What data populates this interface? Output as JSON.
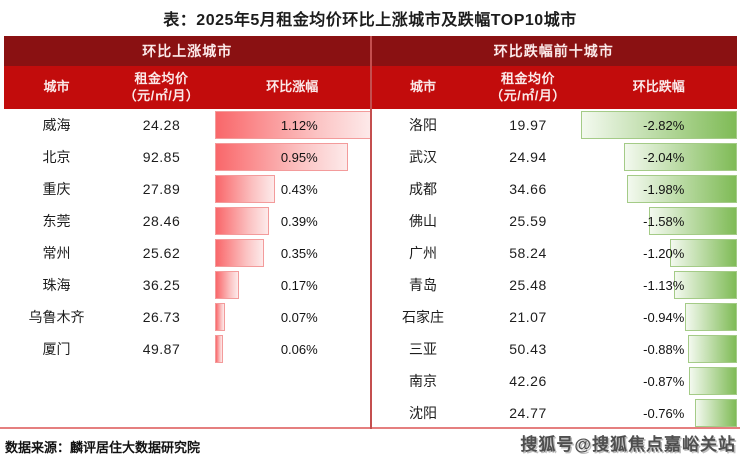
{
  "title": "表：2025年5月租金均价环比上涨城市及跌幅TOP10城市",
  "up_table": {
    "group_header": "环比上涨城市",
    "col_city": "城市",
    "col_price_line1": "租金均价",
    "col_price_line2": "（元/㎡/月）",
    "col_change": "环比涨幅",
    "rows": [
      {
        "city": "威海",
        "price": "24.28",
        "change": "1.12%",
        "value": 1.12
      },
      {
        "city": "北京",
        "price": "92.85",
        "change": "0.95%",
        "value": 0.95
      },
      {
        "city": "重庆",
        "price": "27.89",
        "change": "0.43%",
        "value": 0.43
      },
      {
        "city": "东莞",
        "price": "28.46",
        "change": "0.39%",
        "value": 0.39
      },
      {
        "city": "常州",
        "price": "25.62",
        "change": "0.35%",
        "value": 0.35
      },
      {
        "city": "珠海",
        "price": "36.25",
        "change": "0.17%",
        "value": 0.17
      },
      {
        "city": "乌鲁木齐",
        "price": "26.73",
        "change": "0.07%",
        "value": 0.07
      },
      {
        "city": "厦门",
        "price": "49.87",
        "change": "0.06%",
        "value": 0.06
      }
    ]
  },
  "down_table": {
    "group_header": "环比跌幅前十城市",
    "col_city": "城市",
    "col_price_line1": "租金均价",
    "col_price_line2": "（元/㎡/月）",
    "col_change": "环比跌幅",
    "rows": [
      {
        "city": "洛阳",
        "price": "19.97",
        "change": "-2.82%",
        "value": -2.82
      },
      {
        "city": "武汉",
        "price": "24.94",
        "change": "-2.04%",
        "value": -2.04
      },
      {
        "city": "成都",
        "price": "34.66",
        "change": "-1.98%",
        "value": -1.98
      },
      {
        "city": "佛山",
        "price": "25.59",
        "change": "-1.58%",
        "value": -1.58
      },
      {
        "city": "广州",
        "price": "58.24",
        "change": "-1.20%",
        "value": -1.2
      },
      {
        "city": "青岛",
        "price": "25.48",
        "change": "-1.13%",
        "value": -1.13
      },
      {
        "city": "石家庄",
        "price": "21.07",
        "change": "-0.94%",
        "value": -0.94
      },
      {
        "city": "三亚",
        "price": "50.43",
        "change": "-0.88%",
        "value": -0.88
      },
      {
        "city": "南京",
        "price": "42.26",
        "change": "-0.87%",
        "value": -0.87
      },
      {
        "city": "沈阳",
        "price": "24.77",
        "change": "-0.76%",
        "value": -0.76
      }
    ]
  },
  "footer": {
    "source": "数据来源：麟评居住大数据研究院",
    "watermark": "搜狐号@搜狐焦点嘉峪关站"
  },
  "colors": {
    "group_header_bg": "#8a1112",
    "column_header_bg": "#c20c0c",
    "header_text": "#fbe9e9",
    "up_bar_start": "#f9676a",
    "up_bar_end": "#fdeaea",
    "up_bar_border": "#f39b9b",
    "down_bar_start": "#f3f9ef",
    "down_bar_end": "#7fbb56",
    "down_bar_border": "#a4cb87",
    "divider": "#c44f4f",
    "bottom_line": "#e57f7f"
  },
  "chart_data": [
    {
      "type": "bar",
      "orientation": "horizontal",
      "title": "环比上涨城市",
      "categories": [
        "威海",
        "北京",
        "重庆",
        "东莞",
        "常州",
        "珠海",
        "乌鲁木齐",
        "厦门"
      ],
      "series": [
        {
          "name": "租金均价（元/㎡/月）",
          "values": [
            24.28,
            92.85,
            27.89,
            28.46,
            25.62,
            36.25,
            26.73,
            49.87
          ]
        },
        {
          "name": "环比涨幅(%)",
          "values": [
            1.12,
            0.95,
            0.43,
            0.39,
            0.35,
            0.17,
            0.07,
            0.06
          ]
        }
      ],
      "xlim": [
        0,
        1.12
      ],
      "legend_position": "none",
      "grid": false
    },
    {
      "type": "bar",
      "orientation": "horizontal",
      "title": "环比跌幅前十城市",
      "categories": [
        "洛阳",
        "武汉",
        "成都",
        "佛山",
        "广州",
        "青岛",
        "石家庄",
        "三亚",
        "南京",
        "沈阳"
      ],
      "series": [
        {
          "name": "租金均价（元/㎡/月）",
          "values": [
            19.97,
            24.94,
            34.66,
            25.59,
            58.24,
            25.48,
            21.07,
            50.43,
            42.26,
            24.77
          ]
        },
        {
          "name": "环比跌幅(%)",
          "values": [
            -2.82,
            -2.04,
            -1.98,
            -1.58,
            -1.2,
            -1.13,
            -0.94,
            -0.88,
            -0.87,
            -0.76
          ]
        }
      ],
      "xlim": [
        -2.82,
        0
      ],
      "legend_position": "none",
      "grid": false
    }
  ]
}
